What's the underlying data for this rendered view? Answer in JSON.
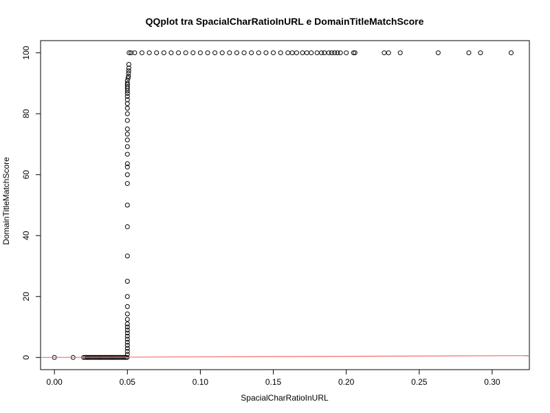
{
  "chart_data": {
    "type": "scatter",
    "title": "QQplot tra SpacialCharRatioInURL e DomainTitleMatchScore",
    "xlabel": "SpacialCharRatioInURL",
    "ylabel": "DomainTitleMatchScore",
    "xlim": [
      -0.0095,
      0.3255
    ],
    "ylim": [
      -4,
      104
    ],
    "x_ticks": [
      0.0,
      0.05,
      0.1,
      0.15,
      0.2,
      0.25,
      0.3
    ],
    "x_tick_labels": [
      "0.00",
      "0.05",
      "0.10",
      "0.15",
      "0.20",
      "0.25",
      "0.30"
    ],
    "y_ticks": [
      0,
      20,
      40,
      60,
      80,
      100
    ],
    "y_tick_labels": [
      "0",
      "20",
      "40",
      "60",
      "80",
      "100"
    ],
    "marker": "open-circle",
    "grid": false,
    "series": [
      {
        "points": [
          [
            0.0,
            0
          ],
          [
            0.0128,
            0
          ],
          [
            0.02,
            0
          ],
          [
            0.021,
            0
          ],
          [
            0.022,
            0
          ],
          [
            0.023,
            0
          ],
          [
            0.024,
            0
          ],
          [
            0.025,
            0
          ],
          [
            0.026,
            0
          ],
          [
            0.027,
            0
          ],
          [
            0.028,
            0
          ],
          [
            0.029,
            0
          ],
          [
            0.03,
            0
          ],
          [
            0.031,
            0
          ],
          [
            0.032,
            0
          ],
          [
            0.033,
            0
          ],
          [
            0.034,
            0
          ],
          [
            0.035,
            0
          ],
          [
            0.036,
            0
          ],
          [
            0.037,
            0
          ],
          [
            0.038,
            0
          ],
          [
            0.039,
            0
          ],
          [
            0.04,
            0
          ],
          [
            0.041,
            0
          ],
          [
            0.042,
            0
          ],
          [
            0.043,
            0
          ],
          [
            0.044,
            0
          ],
          [
            0.045,
            0
          ],
          [
            0.046,
            0
          ],
          [
            0.047,
            0
          ],
          [
            0.048,
            0
          ],
          [
            0.049,
            0
          ],
          [
            0.0498,
            0
          ],
          [
            0.05,
            1
          ],
          [
            0.05,
            2
          ],
          [
            0.05,
            3
          ],
          [
            0.05,
            4
          ],
          [
            0.05,
            5
          ],
          [
            0.05,
            6
          ],
          [
            0.05,
            7
          ],
          [
            0.05,
            8
          ],
          [
            0.05,
            9
          ],
          [
            0.05,
            10
          ],
          [
            0.05,
            11
          ],
          [
            0.05,
            12.5
          ],
          [
            0.05,
            14.3
          ],
          [
            0.05,
            16.7
          ],
          [
            0.05,
            20
          ],
          [
            0.05,
            25
          ],
          [
            0.05,
            33.3
          ],
          [
            0.05,
            42.9
          ],
          [
            0.05,
            50
          ],
          [
            0.05,
            57.1
          ],
          [
            0.05,
            60
          ],
          [
            0.05,
            62.5
          ],
          [
            0.05,
            63.6
          ],
          [
            0.05,
            66.7
          ],
          [
            0.05,
            69.2
          ],
          [
            0.05,
            71.4
          ],
          [
            0.05,
            73.3
          ],
          [
            0.05,
            75
          ],
          [
            0.05,
            77.8
          ],
          [
            0.05,
            80
          ],
          [
            0.05,
            81.8
          ],
          [
            0.05,
            83.3
          ],
          [
            0.05,
            84.6
          ],
          [
            0.05,
            85.7
          ],
          [
            0.05,
            86.7
          ],
          [
            0.05,
            87.5
          ],
          [
            0.05,
            88.2
          ],
          [
            0.05,
            88.9
          ],
          [
            0.05,
            89.5
          ],
          [
            0.05,
            90
          ],
          [
            0.05,
            90.9
          ],
          [
            0.0505,
            91.7
          ],
          [
            0.0507,
            92.3
          ],
          [
            0.0508,
            93.3
          ],
          [
            0.0509,
            94.1
          ],
          [
            0.051,
            95
          ],
          [
            0.051,
            96.2
          ],
          [
            0.0512,
            100
          ],
          [
            0.0525,
            100
          ],
          [
            0.055,
            100
          ],
          [
            0.06,
            100
          ],
          [
            0.065,
            100
          ],
          [
            0.07,
            100
          ],
          [
            0.075,
            100
          ],
          [
            0.08,
            100
          ],
          [
            0.085,
            100
          ],
          [
            0.09,
            100
          ],
          [
            0.095,
            100
          ],
          [
            0.1,
            100
          ],
          [
            0.105,
            100
          ],
          [
            0.11,
            100
          ],
          [
            0.115,
            100
          ],
          [
            0.12,
            100
          ],
          [
            0.125,
            100
          ],
          [
            0.13,
            100
          ],
          [
            0.135,
            100
          ],
          [
            0.14,
            100
          ],
          [
            0.145,
            100
          ],
          [
            0.15,
            100
          ],
          [
            0.155,
            100
          ],
          [
            0.16,
            100
          ],
          [
            0.163,
            100
          ],
          [
            0.166,
            100
          ],
          [
            0.17,
            100
          ],
          [
            0.173,
            100
          ],
          [
            0.176,
            100
          ],
          [
            0.18,
            100
          ],
          [
            0.183,
            100
          ],
          [
            0.185,
            100
          ],
          [
            0.188,
            100
          ],
          [
            0.19,
            100
          ],
          [
            0.192,
            100
          ],
          [
            0.194,
            100
          ],
          [
            0.196,
            100
          ],
          [
            0.2,
            100
          ],
          [
            0.205,
            100
          ],
          [
            0.206,
            100
          ],
          [
            0.226,
            100
          ],
          [
            0.229,
            100
          ],
          [
            0.237,
            100
          ],
          [
            0.263,
            100
          ],
          [
            0.284,
            100
          ],
          [
            0.292,
            100
          ],
          [
            0.313,
            100
          ]
        ],
        "color": "#000000"
      }
    ],
    "reference_line": {
      "points": [
        [
          -0.0095,
          0
        ],
        [
          0.3255,
          0.6
        ]
      ],
      "color": "#f26d6d"
    }
  }
}
